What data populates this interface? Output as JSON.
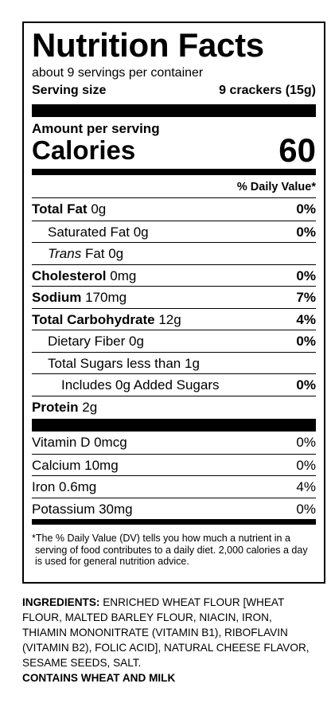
{
  "label": {
    "title": "Nutrition Facts",
    "servings": "about 9 servings per container",
    "serving_size_label": "Serving size",
    "serving_size": "9 crackers (15g)",
    "amount_per_serving": "Amount per serving",
    "calories_label": "Calories",
    "calories": "60",
    "dv_header": "% Daily Value*",
    "rows": [
      {
        "label": "Total Fat",
        "amount": "0g",
        "dv": "0%"
      },
      {
        "label": "Saturated Fat 0g",
        "dv": "0%"
      },
      {
        "prefix": "Trans",
        "label": "Fat 0g"
      },
      {
        "label": "Cholesterol",
        "amount": "0mg",
        "dv": "0%"
      },
      {
        "label": "Sodium",
        "amount": "170mg",
        "dv": "7%"
      },
      {
        "label": "Total Carbohydrate",
        "amount": "12g",
        "dv": "4%"
      },
      {
        "label": "Dietary Fiber 0g",
        "dv": "0%"
      },
      {
        "label": "Total Sugars less than 1g"
      },
      {
        "label": "Includes 0g Added Sugars",
        "dv": "0%"
      },
      {
        "label": "Protein",
        "amount": "2g"
      }
    ],
    "vitamins": [
      {
        "label": "Vitamin D 0mcg",
        "dv": "0%"
      },
      {
        "label": "Calcium 10mg",
        "dv": "0%"
      },
      {
        "label": "Iron 0.6mg",
        "dv": "4%"
      },
      {
        "label": "Potassium 30mg",
        "dv": "0%"
      }
    ],
    "footnote": "*The % Daily Value (DV) tells you how much a nutrient in a serving of food contributes to a daily diet. 2,000 calories a day is used for general nutrition advice."
  },
  "ingredients": {
    "label": "INGREDIENTS:",
    "text": "ENRICHED WHEAT FLOUR [WHEAT FLOUR, MALTED BARLEY FLOUR, NIACIN, IRON, THIAMIN MONONITRATE (VITAMIN B1), RIBOFLAVIN (VITAMIN B2), FOLIC ACID], NATURAL CHEESE FLAVOR, SESAME SEEDS, SALT."
  },
  "allergens": "CONTAINS WHEAT AND MILK"
}
